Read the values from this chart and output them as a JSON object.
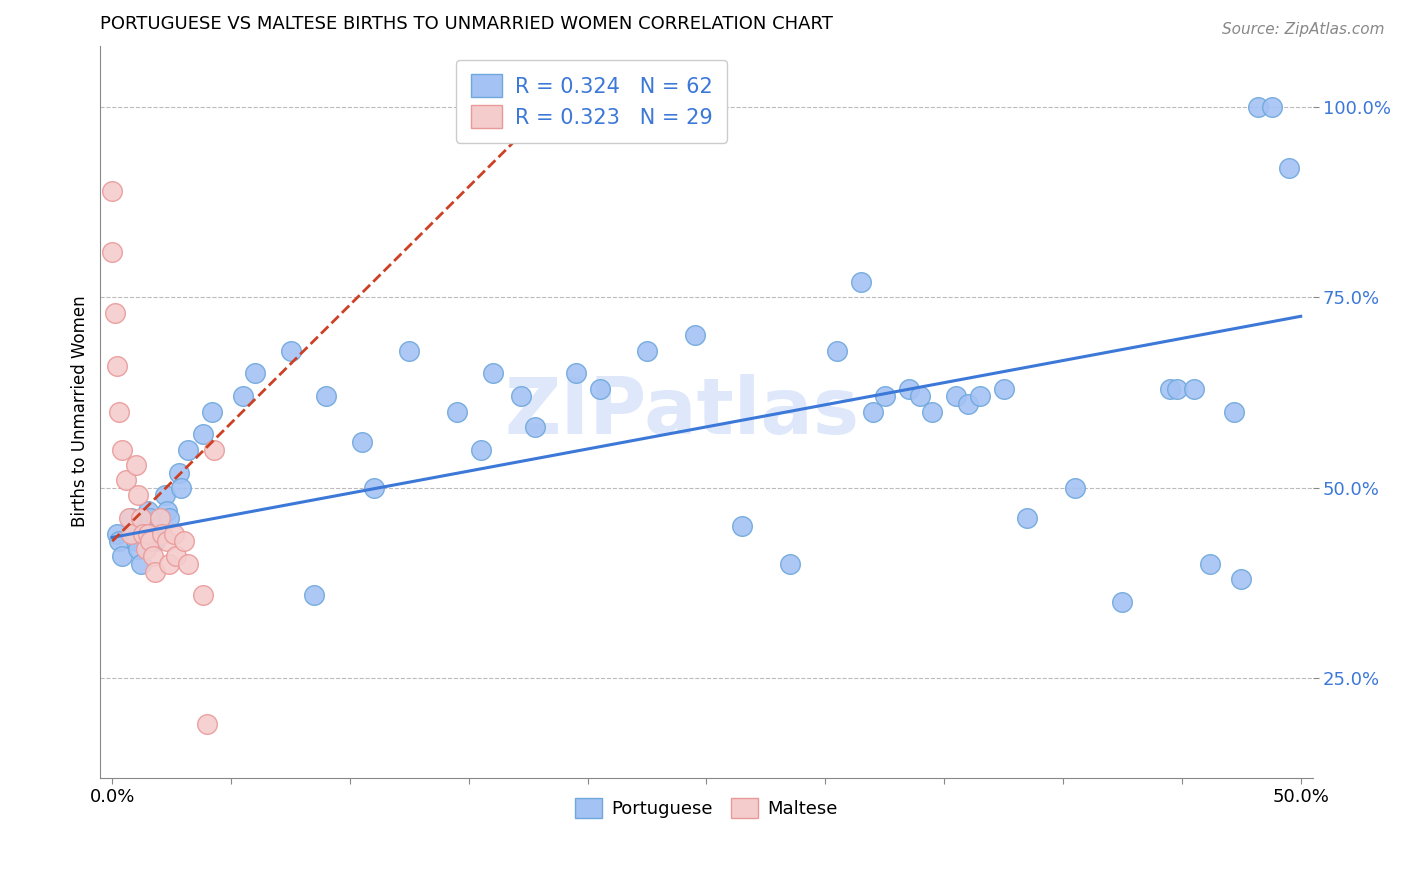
{
  "title": "PORTUGUESE VS MALTESE BIRTHS TO UNMARRIED WOMEN CORRELATION CHART",
  "source": "Source: ZipAtlas.com",
  "ylabel": "Births to Unmarried Women",
  "xlim": [
    -0.005,
    0.505
  ],
  "ylim": [
    0.12,
    1.08
  ],
  "xticks": [
    0.0,
    0.05,
    0.1,
    0.15,
    0.2,
    0.25,
    0.3,
    0.35,
    0.4,
    0.45,
    0.5
  ],
  "xtick_labels": [
    "0.0%",
    "",
    "",
    "",
    "",
    "",
    "",
    "",
    "",
    "",
    "50.0%"
  ],
  "yticks": [
    0.25,
    0.5,
    0.75,
    1.0
  ],
  "ytick_labels": [
    "25.0%",
    "50.0%",
    "75.0%",
    "100.0%"
  ],
  "blue_marker_color": "#a4c2f4",
  "blue_marker_edge": "#6fa8dc",
  "pink_marker_color": "#f4cccc",
  "pink_marker_edge": "#ea9999",
  "blue_line_color": "#3c78d8",
  "pink_line_color": "#cc4125",
  "legend_line1": "R = 0.324   N = 62",
  "legend_line2": "R = 0.323   N = 29",
  "watermark": "ZIPatlas",
  "portuguese_x": [
    0.002,
    0.003,
    0.004,
    0.008,
    0.009,
    0.01,
    0.011,
    0.012,
    0.015,
    0.016,
    0.017,
    0.018,
    0.022,
    0.023,
    0.024,
    0.028,
    0.029,
    0.032,
    0.038,
    0.042,
    0.055,
    0.06,
    0.075,
    0.085,
    0.09,
    0.105,
    0.11,
    0.125,
    0.145,
    0.155,
    0.16,
    0.172,
    0.178,
    0.195,
    0.205,
    0.225,
    0.245,
    0.265,
    0.285,
    0.305,
    0.315,
    0.32,
    0.325,
    0.335,
    0.34,
    0.345,
    0.355,
    0.36,
    0.365,
    0.375,
    0.385,
    0.405,
    0.425,
    0.445,
    0.448,
    0.455,
    0.462,
    0.472,
    0.475,
    0.482,
    0.488,
    0.495
  ],
  "portuguese_y": [
    0.44,
    0.43,
    0.41,
    0.46,
    0.44,
    0.43,
    0.42,
    0.4,
    0.47,
    0.46,
    0.44,
    0.43,
    0.49,
    0.47,
    0.46,
    0.52,
    0.5,
    0.55,
    0.57,
    0.6,
    0.62,
    0.65,
    0.68,
    0.36,
    0.62,
    0.56,
    0.5,
    0.68,
    0.6,
    0.55,
    0.65,
    0.62,
    0.58,
    0.65,
    0.63,
    0.68,
    0.7,
    0.45,
    0.4,
    0.68,
    0.77,
    0.6,
    0.62,
    0.63,
    0.62,
    0.6,
    0.62,
    0.61,
    0.62,
    0.63,
    0.46,
    0.5,
    0.35,
    0.63,
    0.63,
    0.63,
    0.4,
    0.6,
    0.38,
    1.0,
    1.0,
    0.92
  ],
  "maltese_x": [
    0.0,
    0.0,
    0.001,
    0.002,
    0.003,
    0.004,
    0.006,
    0.007,
    0.008,
    0.01,
    0.011,
    0.012,
    0.013,
    0.014,
    0.015,
    0.016,
    0.017,
    0.018,
    0.02,
    0.021,
    0.023,
    0.024,
    0.026,
    0.027,
    0.03,
    0.032,
    0.038,
    0.04,
    0.043
  ],
  "maltese_y": [
    0.89,
    0.81,
    0.73,
    0.66,
    0.6,
    0.55,
    0.51,
    0.46,
    0.44,
    0.53,
    0.49,
    0.46,
    0.44,
    0.42,
    0.44,
    0.43,
    0.41,
    0.39,
    0.46,
    0.44,
    0.43,
    0.4,
    0.44,
    0.41,
    0.43,
    0.4,
    0.36,
    0.19,
    0.55
  ]
}
